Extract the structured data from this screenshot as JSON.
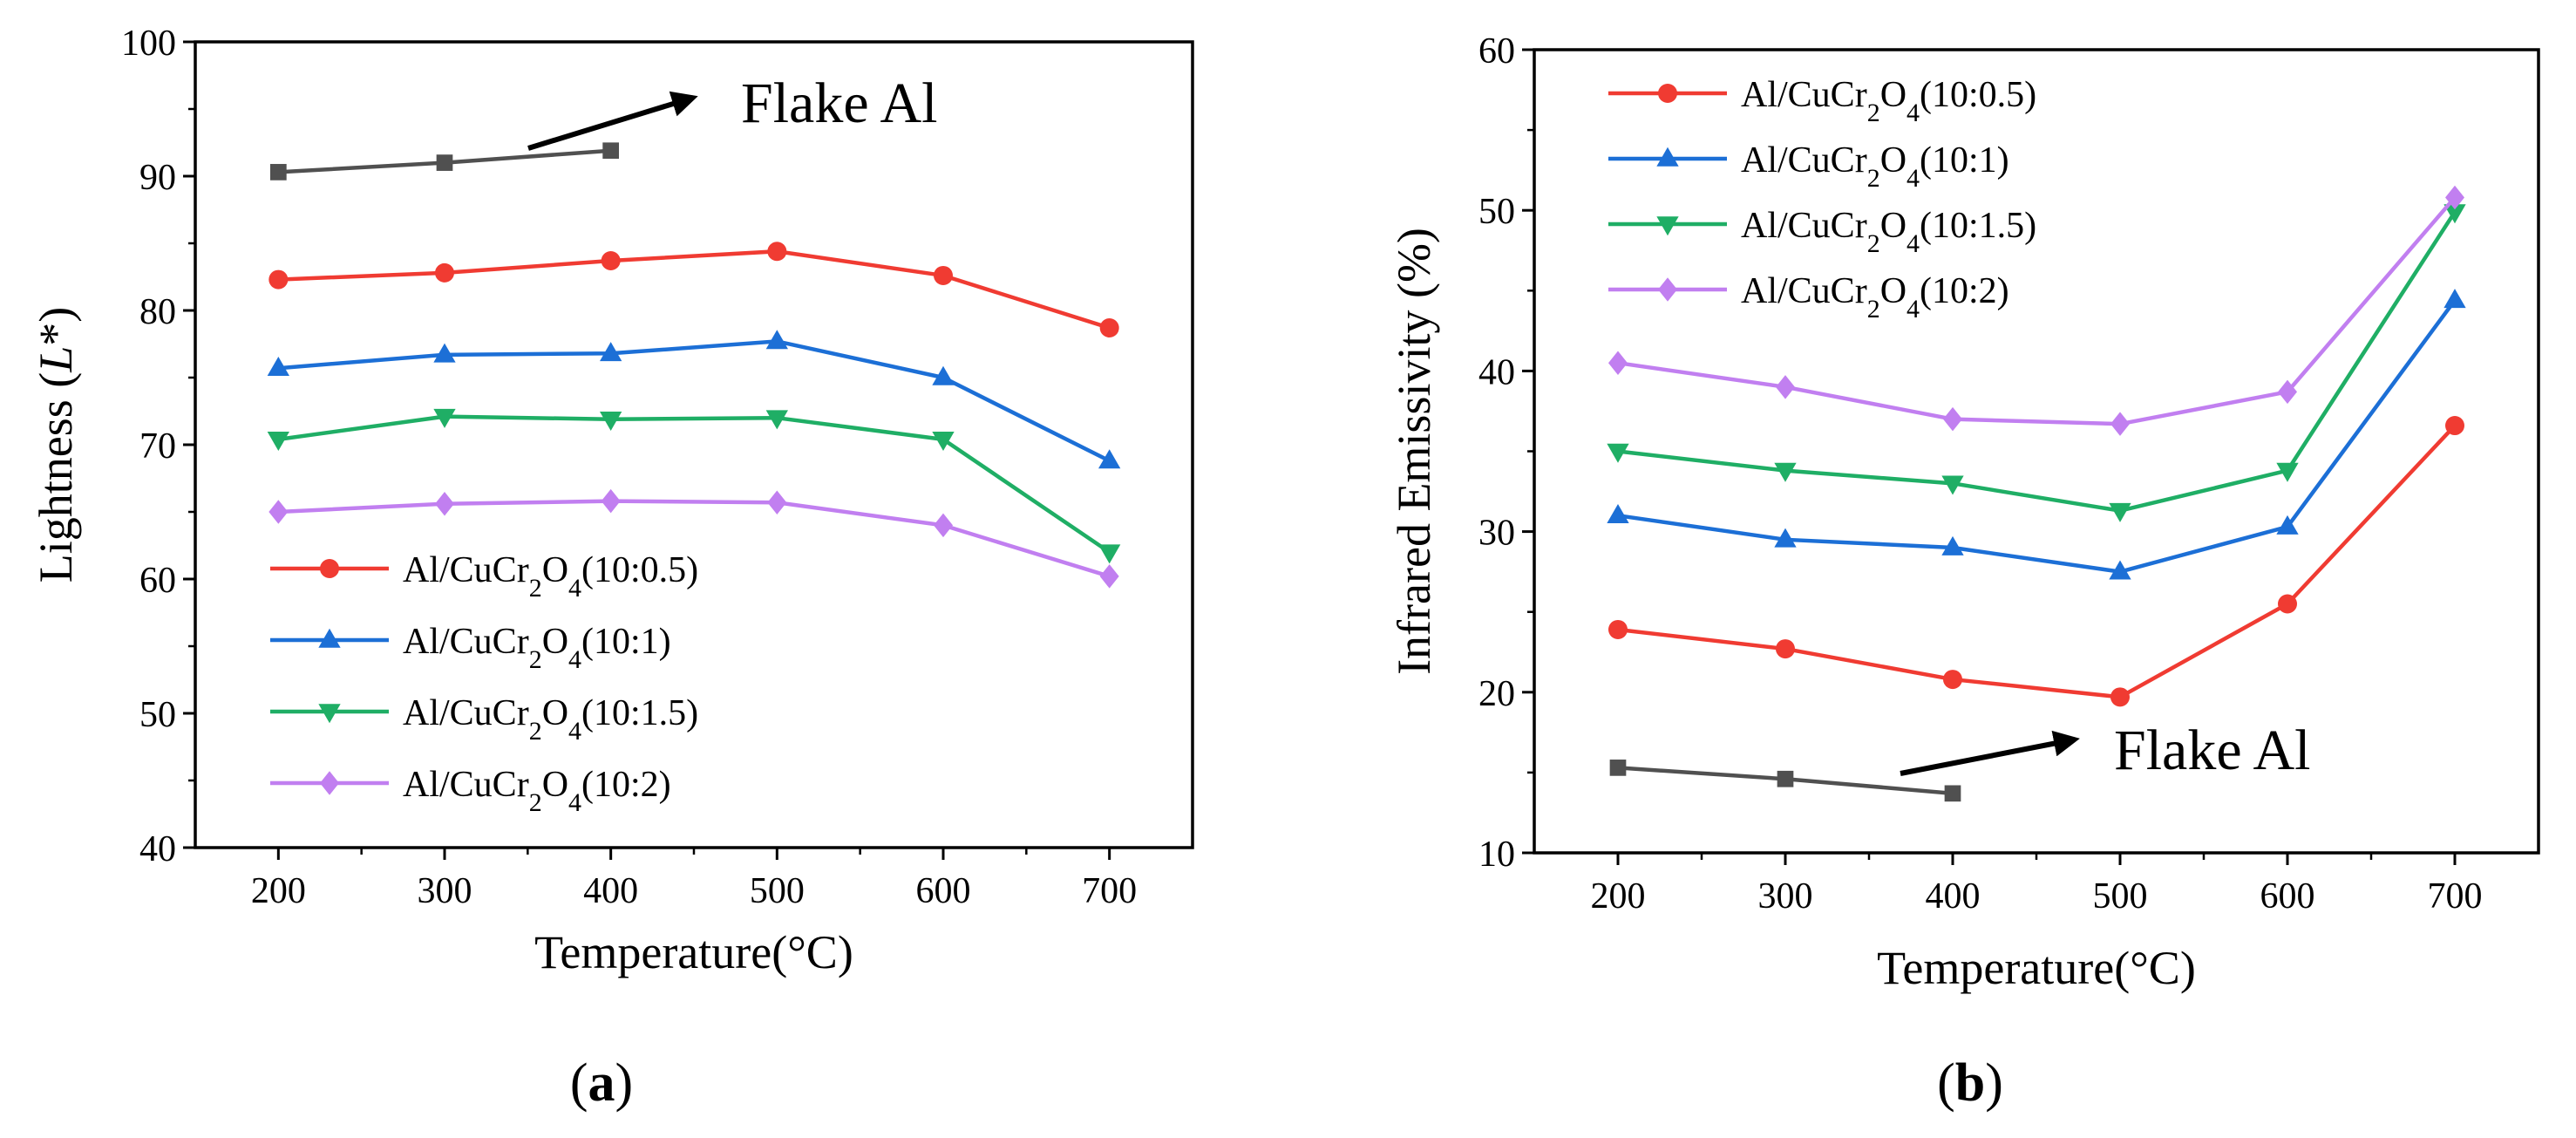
{
  "chart_data": [
    {
      "type": "line",
      "panel_label": "a",
      "xlabel": "Temperature(°C)",
      "ylabel": "Lightness (L*)",
      "ylabel_parts": [
        "Lightness (",
        "L",
        "*)"
      ],
      "xlim": [
        150,
        750
      ],
      "ylim": [
        40,
        100
      ],
      "x_ticks": [
        200,
        300,
        400,
        500,
        600,
        700
      ],
      "y_ticks": [
        40,
        50,
        60,
        70,
        80,
        90,
        100
      ],
      "legend_position": "bottom-left",
      "annotation": {
        "text": "Flake Al",
        "arrow": true
      },
      "series": [
        {
          "name": "Flake Al",
          "color": "#505050",
          "marker": "square",
          "in_legend": false,
          "x": [
            200,
            300,
            400
          ],
          "values": [
            90.3,
            91.0,
            91.9
          ]
        },
        {
          "name": "Al/CuCr2O4(10:0.5)",
          "label": {
            "pre": "Al/CuCr",
            "s1": "2",
            "mid": "O",
            "s2": "4",
            "post": "(10:0.5)"
          },
          "color": "#f03b32",
          "marker": "circle",
          "in_legend": true,
          "x": [
            200,
            300,
            400,
            500,
            600,
            700
          ],
          "values": [
            82.3,
            82.8,
            83.7,
            84.4,
            82.6,
            78.7
          ]
        },
        {
          "name": "Al/CuCr2O4(10:1)",
          "label": {
            "pre": "Al/CuCr",
            "s1": "2",
            "mid": "O",
            "s2": "4",
            "post": "(10:1)"
          },
          "color": "#1c6fd6",
          "marker": "triangle-up",
          "in_legend": true,
          "x": [
            200,
            300,
            400,
            500,
            600,
            700
          ],
          "values": [
            75.7,
            76.7,
            76.8,
            77.7,
            75.0,
            68.8
          ]
        },
        {
          "name": "Al/CuCr2O4(10:1.5)",
          "label": {
            "pre": "Al/CuCr",
            "s1": "2",
            "mid": "O",
            "s2": "4",
            "post": "(10:1.5)"
          },
          "color": "#1fae65",
          "marker": "triangle-down",
          "in_legend": true,
          "x": [
            200,
            300,
            400,
            500,
            600,
            700
          ],
          "values": [
            70.4,
            72.1,
            71.9,
            72.0,
            70.4,
            62.0
          ]
        },
        {
          "name": "Al/CuCr2O4(10:2)",
          "label": {
            "pre": "Al/CuCr",
            "s1": "2",
            "mid": "O",
            "s2": "4",
            "post": "(10:2)"
          },
          "color": "#c17ff0",
          "marker": "diamond",
          "in_legend": true,
          "x": [
            200,
            300,
            400,
            500,
            600,
            700
          ],
          "values": [
            65.0,
            65.6,
            65.8,
            65.7,
            64.0,
            60.2
          ]
        }
      ]
    },
    {
      "type": "line",
      "panel_label": "b",
      "xlabel": "Temperature(°C)",
      "ylabel": "Infrared Emissivity (%)",
      "ylabel_parts": [
        "Infrared Emissivity (%)",
        "",
        ""
      ],
      "xlim": [
        150,
        750
      ],
      "ylim": [
        10,
        60
      ],
      "x_ticks": [
        200,
        300,
        400,
        500,
        600,
        700
      ],
      "y_ticks": [
        10,
        20,
        30,
        40,
        50,
        60
      ],
      "legend_position": "top-left",
      "annotation": {
        "text": "Flake Al",
        "arrow": true
      },
      "series": [
        {
          "name": "Flake Al",
          "color": "#505050",
          "marker": "square",
          "in_legend": false,
          "x": [
            200,
            300,
            400
          ],
          "values": [
            15.3,
            14.6,
            13.7
          ]
        },
        {
          "name": "Al/CuCr2O4(10:0.5)",
          "label": {
            "pre": "Al/CuCr",
            "s1": "2",
            "mid": "O",
            "s2": "4",
            "post": "(10:0.5)"
          },
          "color": "#f03b32",
          "marker": "circle",
          "in_legend": true,
          "x": [
            200,
            300,
            400,
            500,
            600,
            700
          ],
          "values": [
            23.9,
            22.7,
            20.8,
            19.7,
            25.5,
            36.6
          ]
        },
        {
          "name": "Al/CuCr2O4(10:1)",
          "label": {
            "pre": "Al/CuCr",
            "s1": "2",
            "mid": "O",
            "s2": "4",
            "post": "(10:1)"
          },
          "color": "#1c6fd6",
          "marker": "triangle-up",
          "in_legend": true,
          "x": [
            200,
            300,
            400,
            500,
            600,
            700
          ],
          "values": [
            31.0,
            29.5,
            29.0,
            27.5,
            30.3,
            44.4
          ]
        },
        {
          "name": "Al/CuCr2O4(10:1.5)",
          "label": {
            "pre": "Al/CuCr",
            "s1": "2",
            "mid": "O",
            "s2": "4",
            "post": "(10:1.5)"
          },
          "color": "#1fae65",
          "marker": "triangle-down",
          "in_legend": true,
          "x": [
            200,
            300,
            400,
            500,
            600,
            700
          ],
          "values": [
            35.0,
            33.8,
            33.0,
            31.3,
            33.8,
            49.9
          ]
        },
        {
          "name": "Al/CuCr2O4(10:2)",
          "label": {
            "pre": "Al/CuCr",
            "s1": "2",
            "mid": "O",
            "s2": "4",
            "post": "(10:2)"
          },
          "color": "#c17ff0",
          "marker": "diamond",
          "in_legend": true,
          "x": [
            200,
            300,
            400,
            500,
            600,
            700
          ],
          "values": [
            40.5,
            39.0,
            37.0,
            36.7,
            38.7,
            50.8
          ]
        }
      ]
    }
  ]
}
